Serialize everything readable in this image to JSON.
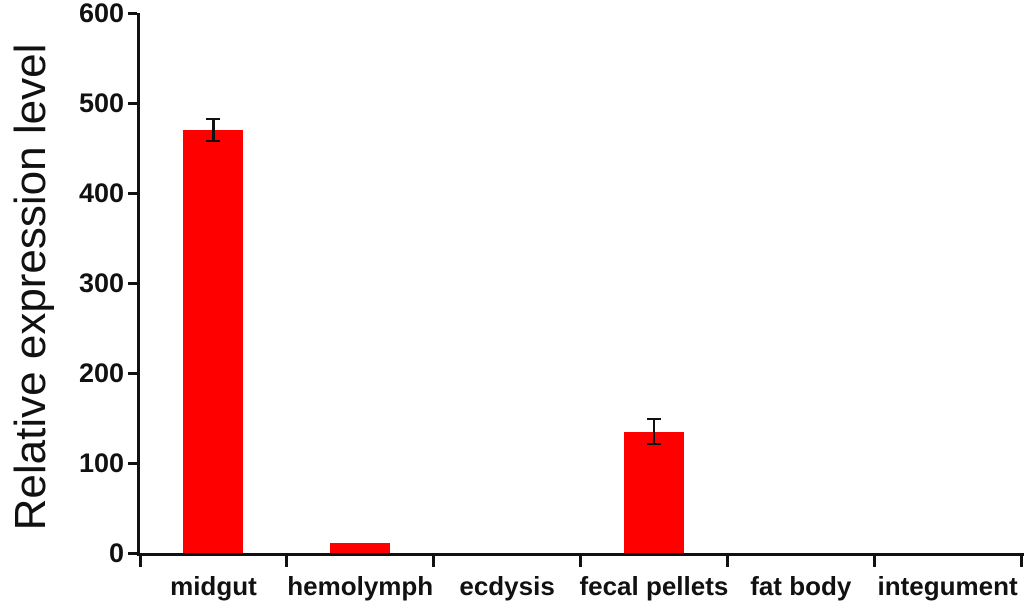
{
  "chart_data": {
    "type": "bar",
    "title": "",
    "xlabel": "",
    "ylabel": "Relative expression level",
    "categories": [
      "midgut",
      "hemolymph",
      "ecdysis",
      "fecal pellets",
      "fat body",
      "integument"
    ],
    "values": [
      470,
      11,
      0,
      135,
      0,
      0
    ],
    "errors": [
      12,
      0,
      0,
      14,
      0,
      0
    ],
    "ylim": [
      0,
      600
    ],
    "yticks": [
      0,
      100,
      200,
      300,
      400,
      500,
      600
    ],
    "grid": false,
    "legend_position": "none",
    "bar_color": "#ff0000",
    "error_bar_color": "#111111",
    "axis_color": "#111111",
    "text_color": "#111111",
    "background_color": "#ffffff"
  }
}
